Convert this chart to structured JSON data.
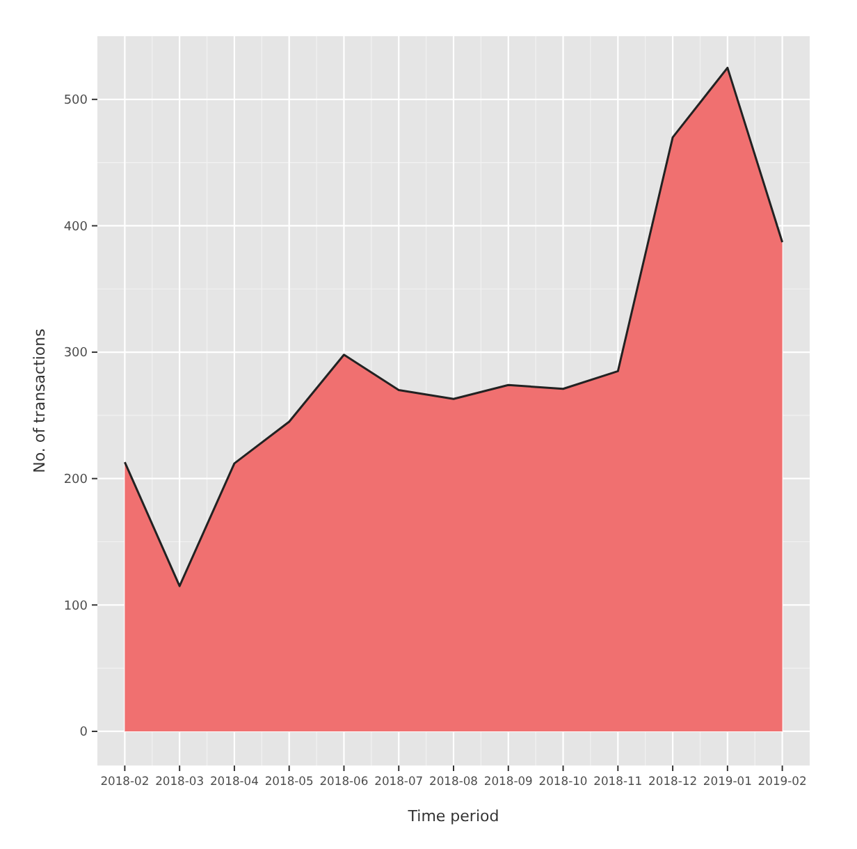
{
  "chart_data": {
    "type": "area",
    "xlabel": "Time period",
    "ylabel": "No. of transactions",
    "categories": [
      "2018-02",
      "2018-03",
      "2018-04",
      "2018-05",
      "2018-06",
      "2018-07",
      "2018-08",
      "2018-09",
      "2018-10",
      "2018-11",
      "2018-12",
      "2019-01",
      "2019-02"
    ],
    "series": [
      {
        "color": "#f07070",
        "values": [
          213,
          115,
          212,
          245,
          298,
          270,
          263,
          274,
          271,
          285,
          470,
          525,
          387
        ]
      }
    ],
    "ylim": [
      -27,
      550
    ],
    "yticks": [
      0,
      100,
      200,
      300,
      400,
      500
    ],
    "grid": true
  }
}
